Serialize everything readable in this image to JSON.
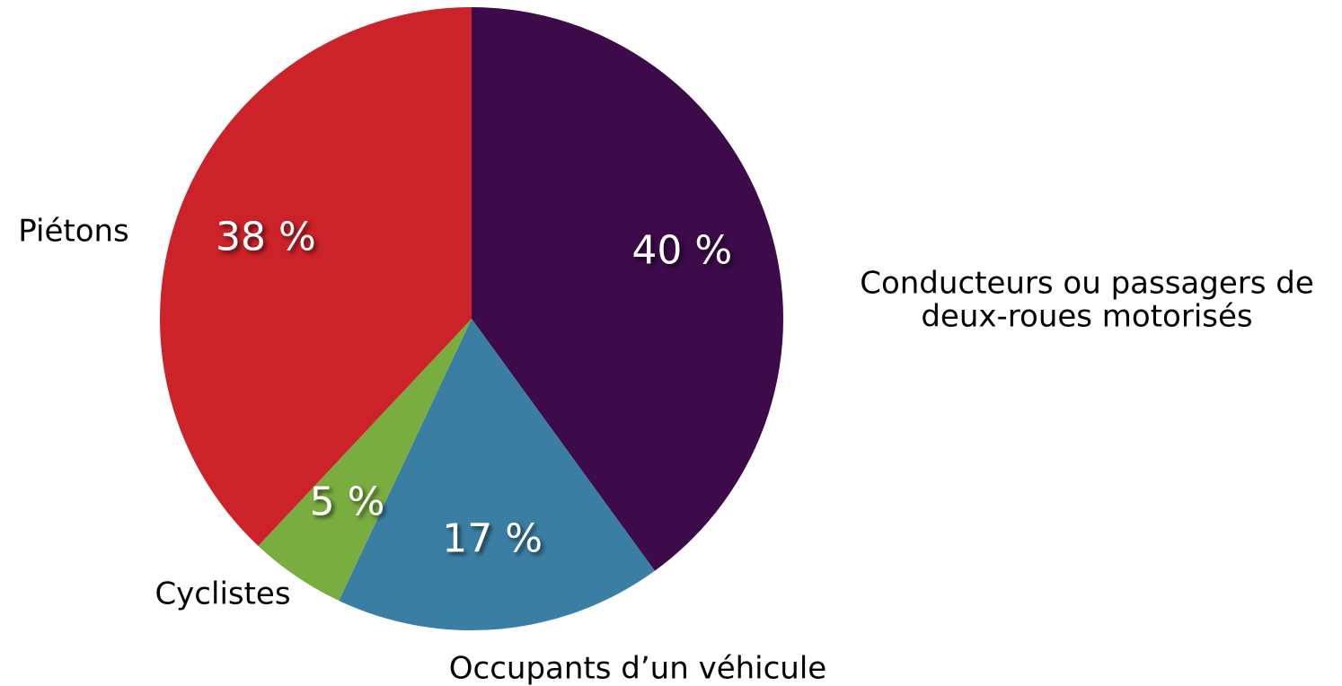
{
  "chart_data": {
    "type": "pie",
    "categories": [
      "Conducteurs ou passagers de deux-roues motorisés",
      "Occupants d’un véhicule",
      "Cyclistes",
      "Piétons"
    ],
    "values": [
      40,
      17,
      5,
      38
    ],
    "value_labels": [
      "40 %",
      "17 %",
      "5 %",
      "38 %"
    ],
    "colors": [
      "#3d0a4a",
      "#3a7fa3",
      "#7aad3f",
      "#cc2229"
    ]
  }
}
